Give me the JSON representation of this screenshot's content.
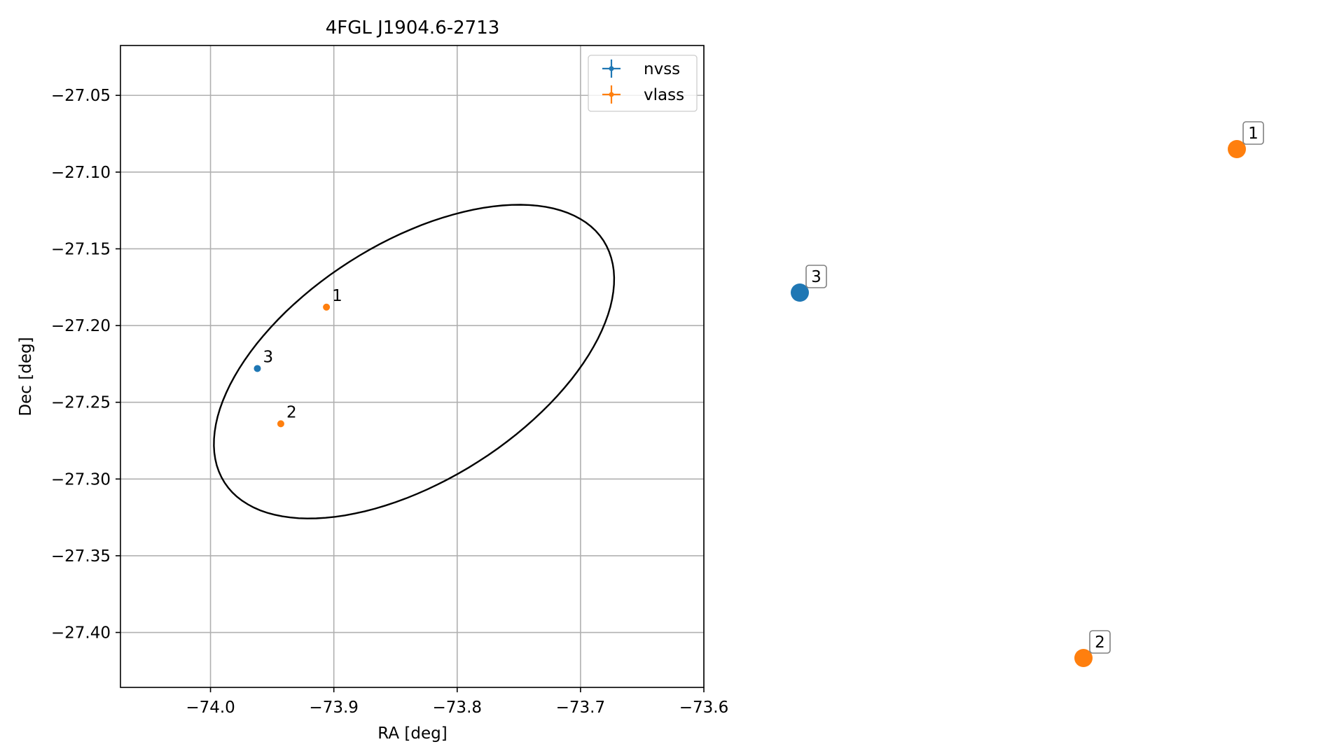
{
  "chart_data": {
    "type": "scatter",
    "title": "4FGL J1904.6-2713",
    "xlabel": "RA [deg]",
    "ylabel": "Dec [deg]",
    "xlim": [
      -74.073,
      -73.6
    ],
    "ylim": [
      -27.4358,
      -27.0175
    ],
    "xticks": [
      -74.0,
      -73.9,
      -73.8,
      -73.7,
      -73.6
    ],
    "xtick_labels": [
      "−74.0",
      "−73.9",
      "−73.8",
      "−73.7",
      "−73.6"
    ],
    "yticks": [
      -27.05,
      -27.1,
      -27.15,
      -27.2,
      -27.25,
      -27.3,
      -27.35,
      -27.4
    ],
    "ytick_labels": [
      "−27.05",
      "−27.10",
      "−27.15",
      "−27.20",
      "−27.25",
      "−27.30",
      "−27.35",
      "−27.40"
    ],
    "grid": true,
    "legend_placement": "top-right",
    "series": [
      {
        "name": "nvss",
        "color": "#1f77b4",
        "points": [
          {
            "label": "3",
            "ra": -73.962,
            "dec": -27.228
          }
        ]
      },
      {
        "name": "vlass",
        "color": "#ff7f0e",
        "points": [
          {
            "label": "1",
            "ra": -73.906,
            "dec": -27.188
          },
          {
            "label": "2",
            "ra": -73.943,
            "dec": -27.264
          }
        ]
      }
    ],
    "ellipse": {
      "color": "#000000",
      "center_ra": -73.83,
      "center_dec": -27.2236,
      "note_points": [
        [
          -73.883,
          -27.1245
        ],
        [
          -73.68,
          -27.2535
        ],
        [
          -73.799,
          -27.3225
        ],
        [
          -73.99,
          -27.198
        ]
      ]
    }
  },
  "side_markers": [
    {
      "label": "1",
      "color": "#ff7f0e"
    },
    {
      "label": "3",
      "color": "#1f77b4"
    },
    {
      "label": "2",
      "color": "#ff7f0e"
    }
  ]
}
